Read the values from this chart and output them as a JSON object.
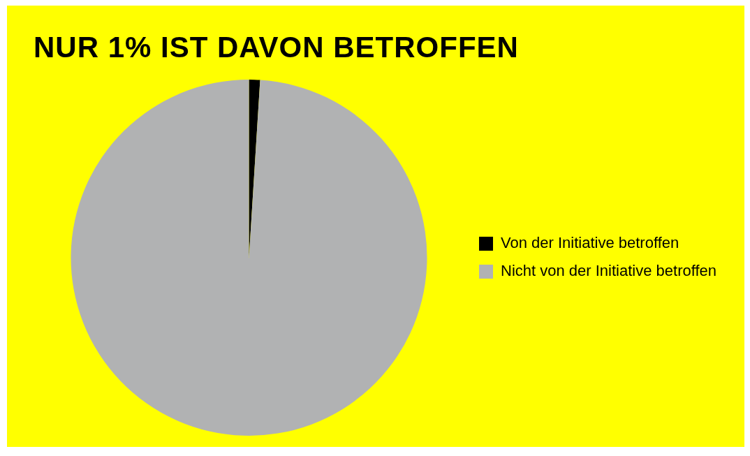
{
  "chart_data": {
    "type": "pie",
    "title": "NUR 1% IST DAVON BETROFFEN",
    "categories": [
      "Von der Initiative betroffen",
      "Nicht von der Initiative betroffen"
    ],
    "values": [
      1,
      99
    ],
    "colors": [
      "#000000",
      "#b1b2b3"
    ],
    "legend": "right"
  }
}
